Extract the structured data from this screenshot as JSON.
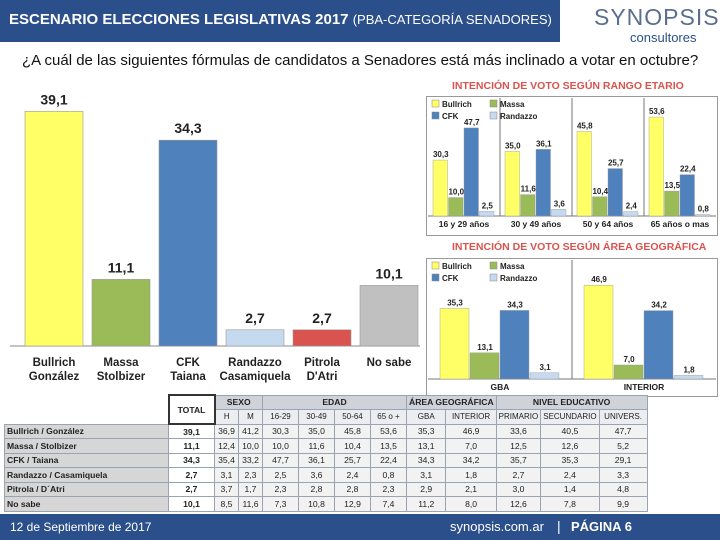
{
  "header": {
    "title": "ESCENARIO ELECCIONES LEGISLATIVAS 2017",
    "subtitle": "(PBA-CATEGORÍA SENADORES)"
  },
  "logo": {
    "main": "SYNOPSIS",
    "sub": "consultores"
  },
  "question": "¿A cuál de las siguientes fórmulas de candidatos a Senadores está más inclinado a votar en octubre?",
  "footer": {
    "date": "12 de Septiembre de 2017",
    "website": "synopsis.com.ar",
    "separator": "|",
    "page": "PÁGINA 6"
  },
  "colors": {
    "header_bg": "#2b4f8a",
    "bullrich": "#ffff66",
    "massa": "#9bbb59",
    "cfk": "#4f81bd",
    "randazzo": "#c5d9f1",
    "pitrola": "#d9534f",
    "nosabe": "#c0c0c0",
    "title_red": "#d9534f"
  },
  "chart_data": [
    {
      "type": "bar",
      "title": "",
      "categories": [
        [
          "Bullrich",
          "González"
        ],
        [
          "Massa",
          "Stolbizer"
        ],
        [
          "CFK",
          "Taiana"
        ],
        [
          "Randazzo",
          "Casamiquela"
        ],
        [
          "Pitrola",
          "D'Atri"
        ],
        [
          "No sabe"
        ]
      ],
      "values": [
        39.1,
        11.1,
        34.3,
        2.7,
        2.7,
        10.1
      ],
      "value_labels": [
        "39,1",
        "11,1",
        "34,3",
        "2,7",
        "2,7",
        "10,1"
      ],
      "colors": [
        "#ffff66",
        "#9bbb59",
        "#4f81bd",
        "#c5d9f1",
        "#d9534f",
        "#c0c0c0"
      ],
      "ylim": [
        0,
        45
      ]
    },
    {
      "type": "bar",
      "title": "INTENCIÓN DE VOTO SEGÚN RANGO ETARIO",
      "categories": [
        "16 y 29 años",
        "30 y 49 años",
        "50 y 64 años",
        "65 años o mas"
      ],
      "series": [
        {
          "name": "Bullrich",
          "color": "#ffff66",
          "values": [
            30.3,
            35.0,
            45.8,
            53.6
          ],
          "labels": [
            "30,3",
            "35,0",
            "45,8",
            "53,6"
          ]
        },
        {
          "name": "Massa",
          "color": "#9bbb59",
          "values": [
            10.0,
            11.6,
            10.4,
            13.5
          ],
          "labels": [
            "10,0",
            "11,6",
            "10,4",
            "13,5"
          ]
        },
        {
          "name": "CFK",
          "color": "#4f81bd",
          "values": [
            47.7,
            36.1,
            25.7,
            22.4
          ],
          "labels": [
            "47,7",
            "36,1",
            "25,7",
            "22,4"
          ]
        },
        {
          "name": "Randazzo",
          "color": "#c5d9f1",
          "values": [
            2.5,
            3.6,
            2.4,
            0.8
          ],
          "labels": [
            "2,5",
            "3,6",
            "2,4",
            "0,8"
          ]
        }
      ],
      "ylim": [
        0,
        65
      ]
    },
    {
      "type": "bar",
      "title": "INTENCIÓN DE VOTO SEGÚN ÁREA GEOGRÁFICA",
      "categories": [
        "GBA",
        "INTERIOR"
      ],
      "series": [
        {
          "name": "Bullrich",
          "color": "#ffff66",
          "values": [
            35.3,
            46.9
          ],
          "labels": [
            "35,3",
            "46,9"
          ]
        },
        {
          "name": "Massa",
          "color": "#9bbb59",
          "values": [
            13.1,
            7.0
          ],
          "labels": [
            "13,1",
            "7,0"
          ]
        },
        {
          "name": "CFK",
          "color": "#4f81bd",
          "values": [
            34.3,
            34.2
          ],
          "labels": [
            "34,3",
            "34,2"
          ]
        },
        {
          "name": "Randazzo",
          "color": "#c5d9f1",
          "values": [
            3.1,
            1.8
          ],
          "labels": [
            "3,1",
            "1,8"
          ]
        }
      ],
      "ylim": [
        0,
        60
      ]
    },
    {
      "type": "table",
      "total_header": "TOTAL",
      "groups": [
        {
          "label": "SEXO",
          "subs": [
            "H",
            "M"
          ]
        },
        {
          "label": "EDAD",
          "subs": [
            "16-29",
            "30-49",
            "50-64",
            "65 o +"
          ]
        },
        {
          "label": "ÁREA GEOGRÁFICA",
          "subs": [
            "GBA",
            "INTERIOR"
          ]
        },
        {
          "label": "NIVEL EDUCATIVO",
          "subs": [
            "PRIMARIO",
            "SECUNDARIO",
            "UNIVERS."
          ]
        }
      ],
      "rows": [
        {
          "label": "Bullrich / González",
          "total": "39,1",
          "values": [
            "36,9",
            "41,2",
            "30,3",
            "35,0",
            "45,8",
            "53,6",
            "35,3",
            "46,9",
            "33,6",
            "40,5",
            "47,7"
          ]
        },
        {
          "label": "Massa / Stolbizer",
          "total": "11,1",
          "values": [
            "12,4",
            "10,0",
            "10,0",
            "11,6",
            "10,4",
            "13,5",
            "13,1",
            "7,0",
            "12,5",
            "12,6",
            "5,2"
          ]
        },
        {
          "label": "CFK / Taiana",
          "total": "34,3",
          "values": [
            "35,4",
            "33,2",
            "47,7",
            "36,1",
            "25,7",
            "22,4",
            "34,3",
            "34,2",
            "35,7",
            "35,3",
            "29,1"
          ]
        },
        {
          "label": "Randazzo / Casamiquela",
          "total": "2,7",
          "values": [
            "3,1",
            "2,3",
            "2,5",
            "3,6",
            "2,4",
            "0,8",
            "3,1",
            "1,8",
            "2,7",
            "2,4",
            "3,3"
          ]
        },
        {
          "label": "Pitrola / D´Atri",
          "total": "2,7",
          "values": [
            "3,7",
            "1,7",
            "2,3",
            "2,8",
            "2,8",
            "2,3",
            "2,9",
            "2,1",
            "3,0",
            "1,4",
            "4,8"
          ]
        },
        {
          "label": "No sabe",
          "total": "10,1",
          "values": [
            "8,5",
            "11,6",
            "7,3",
            "10,8",
            "12,9",
            "7,4",
            "11,2",
            "8,0",
            "12,6",
            "7,8",
            "9,9"
          ]
        }
      ]
    }
  ]
}
